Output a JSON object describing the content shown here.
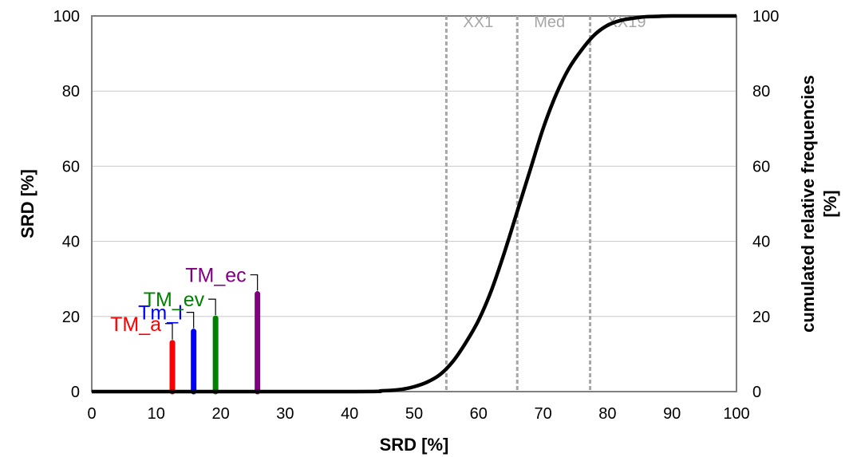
{
  "chart_data": {
    "type": "line",
    "xlabel": "SRD [%]",
    "ylabel_left": "SRD [%]",
    "ylabel_right": "cumulated relative frequencies [%]",
    "xlim": [
      0,
      100
    ],
    "ylim_left": [
      0,
      100
    ],
    "ylim_right": [
      0,
      100
    ],
    "x_ticks": [
      "0",
      "10",
      "20",
      "30",
      "40",
      "50",
      "60",
      "70",
      "80",
      "90",
      "100"
    ],
    "y_ticks_left": [
      "0",
      "20",
      "40",
      "60",
      "80",
      "100"
    ],
    "y_ticks_right": [
      "0",
      "20",
      "40",
      "60",
      "80",
      "100"
    ],
    "grid": "horizontal",
    "curve": {
      "x": [
        0,
        40,
        45,
        48,
        50,
        52,
        54,
        56,
        58,
        60,
        62,
        64,
        66,
        68,
        70,
        72,
        74,
        76,
        78,
        80,
        82,
        84,
        86,
        88,
        90,
        100
      ],
      "y": [
        0,
        0,
        0.2,
        0.6,
        1.3,
        2.5,
        4.5,
        8,
        13,
        19,
        27,
        37,
        48,
        59,
        70,
        79,
        86,
        91,
        95,
        97.5,
        98.8,
        99.4,
        99.8,
        99.9,
        100,
        100
      ]
    },
    "percentile_lines": [
      {
        "label": "XX1",
        "x": 55
      },
      {
        "label": "Med",
        "x": 66
      },
      {
        "label": "XX19",
        "x": 77.3
      }
    ],
    "threshold_bars": [
      {
        "label": "TM_a",
        "x": 12.5,
        "y": 13,
        "color": "#ff0000"
      },
      {
        "label": "Tm_l",
        "x": 15.8,
        "y": 16,
        "color": "#0000ff"
      },
      {
        "label": "TM_ev",
        "x": 19.2,
        "y": 19.5,
        "color": "#008000"
      },
      {
        "label": "TM_ec",
        "x": 25.7,
        "y": 26,
        "color": "#800080"
      }
    ]
  }
}
